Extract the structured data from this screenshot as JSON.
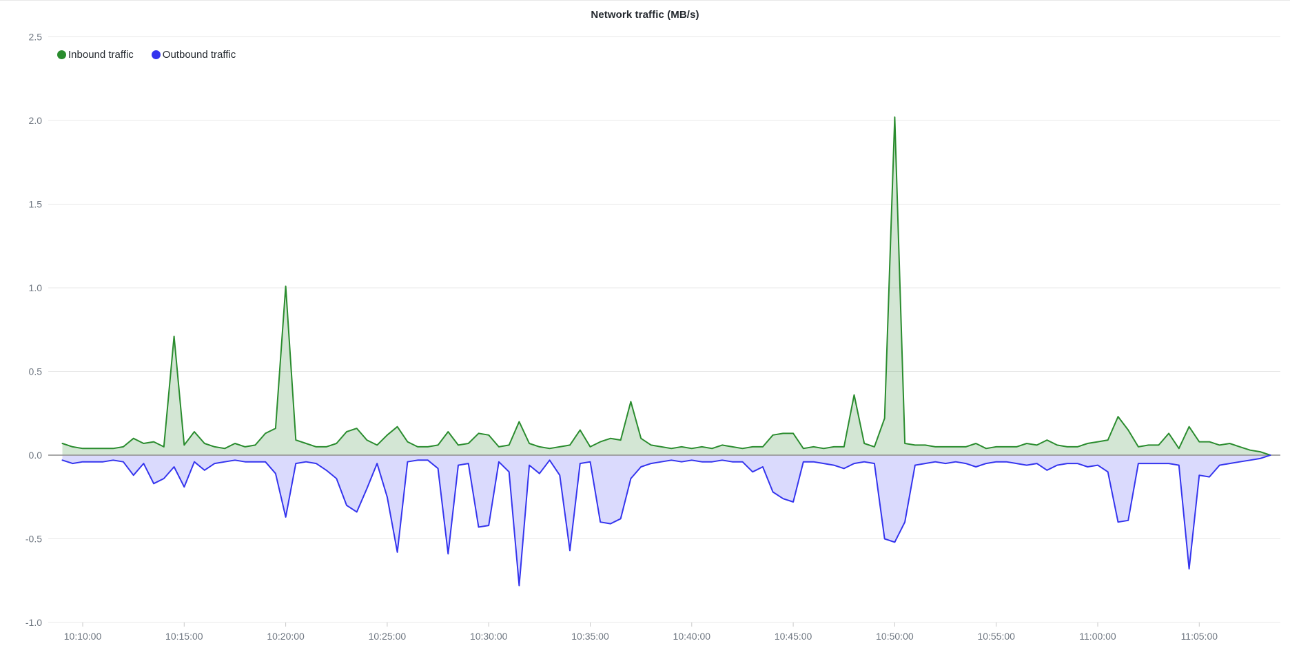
{
  "chart": {
    "title": "Network traffic (MB/s)",
    "legend": [
      {
        "label": "Inbound traffic"
      },
      {
        "label": "Outbound traffic"
      }
    ]
  },
  "chart_data": {
    "type": "area",
    "title": "Network traffic (MB/s)",
    "xlabel": "",
    "ylabel": "",
    "ylim": [
      -1.0,
      2.5
    ],
    "grid": true,
    "legend_position": "top-left",
    "y_ticks": [
      2.5,
      2.0,
      1.5,
      1.0,
      0.5,
      0.0,
      -0.5,
      -1.0
    ],
    "x_ticks": [
      "10:10:00",
      "10:15:00",
      "10:20:00",
      "10:25:00",
      "10:30:00",
      "10:35:00",
      "10:40:00",
      "10:45:00",
      "10:50:00",
      "10:55:00",
      "11:00:00",
      "11:05:00"
    ],
    "x": [
      "10:09:00",
      "10:09:30",
      "10:10:00",
      "10:10:30",
      "10:11:00",
      "10:11:30",
      "10:12:00",
      "10:12:30",
      "10:13:00",
      "10:13:30",
      "10:14:00",
      "10:14:30",
      "10:15:00",
      "10:15:30",
      "10:16:00",
      "10:16:30",
      "10:17:00",
      "10:17:30",
      "10:18:00",
      "10:18:30",
      "10:19:00",
      "10:19:30",
      "10:20:00",
      "10:20:30",
      "10:21:00",
      "10:21:30",
      "10:22:00",
      "10:22:30",
      "10:23:00",
      "10:23:30",
      "10:24:00",
      "10:24:30",
      "10:25:00",
      "10:25:30",
      "10:26:00",
      "10:26:30",
      "10:27:00",
      "10:27:30",
      "10:28:00",
      "10:28:30",
      "10:29:00",
      "10:29:30",
      "10:30:00",
      "10:30:30",
      "10:31:00",
      "10:31:30",
      "10:32:00",
      "10:32:30",
      "10:33:00",
      "10:33:30",
      "10:34:00",
      "10:34:30",
      "10:35:00",
      "10:35:30",
      "10:36:00",
      "10:36:30",
      "10:37:00",
      "10:37:30",
      "10:38:00",
      "10:38:30",
      "10:39:00",
      "10:39:30",
      "10:40:00",
      "10:40:30",
      "10:41:00",
      "10:41:30",
      "10:42:00",
      "10:42:30",
      "10:43:00",
      "10:43:30",
      "10:44:00",
      "10:44:30",
      "10:45:00",
      "10:45:30",
      "10:46:00",
      "10:46:30",
      "10:47:00",
      "10:47:30",
      "10:48:00",
      "10:48:30",
      "10:49:00",
      "10:49:30",
      "10:50:00",
      "10:50:30",
      "10:51:00",
      "10:51:30",
      "10:52:00",
      "10:52:30",
      "10:53:00",
      "10:53:30",
      "10:54:00",
      "10:54:30",
      "10:55:00",
      "10:55:30",
      "10:56:00",
      "10:56:30",
      "10:57:00",
      "10:57:30",
      "10:58:00",
      "10:58:30",
      "10:59:00",
      "10:59:30",
      "11:00:00",
      "11:00:30",
      "11:01:00",
      "11:01:30",
      "11:02:00",
      "11:02:30",
      "11:03:00",
      "11:03:30",
      "11:04:00",
      "11:04:30",
      "11:05:00",
      "11:05:30",
      "11:06:00",
      "11:06:30",
      "11:07:00",
      "11:07:30",
      "11:08:00",
      "11:08:30"
    ],
    "series": [
      {
        "name": "Inbound traffic",
        "color": "#2a8c2e",
        "fill": "rgba(56,142,60,0.22)",
        "values": [
          0.07,
          0.05,
          0.04,
          0.04,
          0.04,
          0.04,
          0.05,
          0.1,
          0.07,
          0.08,
          0.05,
          0.71,
          0.06,
          0.14,
          0.07,
          0.05,
          0.04,
          0.07,
          0.05,
          0.06,
          0.13,
          0.16,
          1.01,
          0.09,
          0.07,
          0.05,
          0.05,
          0.07,
          0.14,
          0.16,
          0.09,
          0.06,
          0.12,
          0.17,
          0.08,
          0.05,
          0.05,
          0.06,
          0.14,
          0.06,
          0.07,
          0.13,
          0.12,
          0.05,
          0.06,
          0.2,
          0.07,
          0.05,
          0.04,
          0.05,
          0.06,
          0.15,
          0.05,
          0.08,
          0.1,
          0.09,
          0.32,
          0.1,
          0.06,
          0.05,
          0.04,
          0.05,
          0.04,
          0.05,
          0.04,
          0.06,
          0.05,
          0.04,
          0.05,
          0.05,
          0.12,
          0.13,
          0.13,
          0.04,
          0.05,
          0.04,
          0.05,
          0.05,
          0.36,
          0.07,
          0.05,
          0.22,
          2.02,
          0.07,
          0.06,
          0.06,
          0.05,
          0.05,
          0.05,
          0.05,
          0.07,
          0.04,
          0.05,
          0.05,
          0.05,
          0.07,
          0.06,
          0.09,
          0.06,
          0.05,
          0.05,
          0.07,
          0.08,
          0.09,
          0.23,
          0.15,
          0.05,
          0.06,
          0.06,
          0.13,
          0.04,
          0.17,
          0.08,
          0.08,
          0.06,
          0.07,
          0.05,
          0.03,
          0.02,
          0.0
        ]
      },
      {
        "name": "Outbound traffic",
        "color": "#3434ee",
        "fill": "rgba(85,85,245,0.22)",
        "values": [
          -0.03,
          -0.05,
          -0.04,
          -0.04,
          -0.04,
          -0.03,
          -0.04,
          -0.12,
          -0.05,
          -0.17,
          -0.14,
          -0.07,
          -0.19,
          -0.04,
          -0.09,
          -0.05,
          -0.04,
          -0.03,
          -0.04,
          -0.04,
          -0.04,
          -0.11,
          -0.37,
          -0.05,
          -0.04,
          -0.05,
          -0.09,
          -0.14,
          -0.3,
          -0.34,
          -0.2,
          -0.05,
          -0.25,
          -0.58,
          -0.04,
          -0.03,
          -0.03,
          -0.08,
          -0.59,
          -0.06,
          -0.05,
          -0.43,
          -0.42,
          -0.04,
          -0.1,
          -0.78,
          -0.06,
          -0.11,
          -0.03,
          -0.12,
          -0.57,
          -0.05,
          -0.04,
          -0.4,
          -0.41,
          -0.38,
          -0.14,
          -0.07,
          -0.05,
          -0.04,
          -0.03,
          -0.04,
          -0.03,
          -0.04,
          -0.04,
          -0.03,
          -0.04,
          -0.04,
          -0.1,
          -0.07,
          -0.22,
          -0.26,
          -0.28,
          -0.04,
          -0.04,
          -0.05,
          -0.06,
          -0.08,
          -0.05,
          -0.04,
          -0.05,
          -0.5,
          -0.52,
          -0.4,
          -0.06,
          -0.05,
          -0.04,
          -0.05,
          -0.04,
          -0.05,
          -0.07,
          -0.05,
          -0.04,
          -0.04,
          -0.05,
          -0.06,
          -0.05,
          -0.09,
          -0.06,
          -0.05,
          -0.05,
          -0.07,
          -0.06,
          -0.1,
          -0.4,
          -0.39,
          -0.05,
          -0.05,
          -0.05,
          -0.05,
          -0.06,
          -0.68,
          -0.12,
          -0.13,
          -0.06,
          -0.05,
          -0.04,
          -0.03,
          -0.02,
          0.0
        ]
      }
    ],
    "colors": {
      "grid": "#e8e8e8",
      "zero_baseline": "#9b9b9b",
      "tick_label": "#6e7680",
      "title": "#24292f"
    }
  }
}
